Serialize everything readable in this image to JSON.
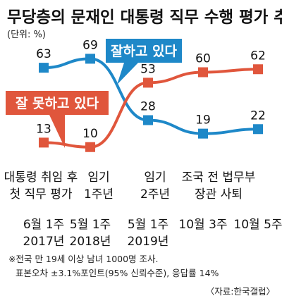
{
  "chart_data": {
    "type": "line",
    "title": "무당층의 문재인 대통령 직무 수행 평가 추이",
    "unit_label": "(단위: %)",
    "categories": [
      {
        "event": [
          "대통령 취임 후",
          "첫 직무 평가"
        ],
        "date": [
          "6월 1주",
          "2017년"
        ]
      },
      {
        "event": [
          "임기",
          "1주년"
        ],
        "date": [
          "5월 1주",
          "2018년"
        ]
      },
      {
        "event": [
          "임기",
          "2주년"
        ],
        "date": [
          "5월 1주",
          "2019년"
        ]
      },
      {
        "event": [
          "조국 전 법무부",
          "장관 사퇴"
        ],
        "date": [
          "10월 3주"
        ]
      },
      {
        "event": [],
        "date": [
          "10월 5주"
        ]
      }
    ],
    "series": [
      {
        "name": "잘하고 있다",
        "color": "#1e88c8",
        "values": [
          63,
          69,
          28,
          19,
          22
        ]
      },
      {
        "name": "잘 못하고 있다",
        "color": "#e0563c",
        "values": [
          13,
          10,
          53,
          60,
          62
        ]
      }
    ],
    "ylim": [
      0,
      80
    ],
    "grid": false,
    "notes": [
      "※전국 만 19세 이상 남녀 1000명 조사.",
      "표본오차 ±3.1%포인트(95% 신뢰수준), 응답률 14%"
    ],
    "source": "〈자료:한국갤럽〉"
  }
}
